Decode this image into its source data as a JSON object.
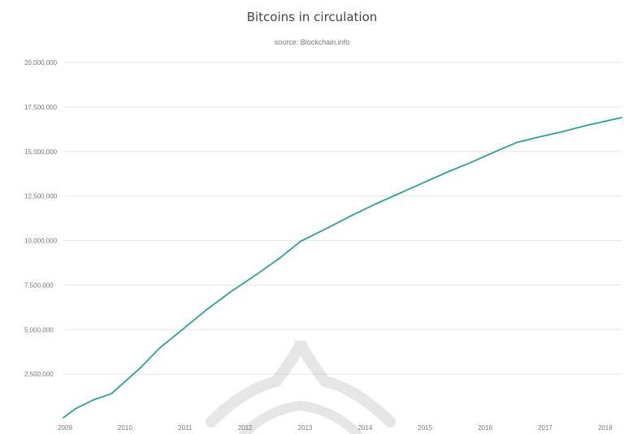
{
  "chart_data": {
    "type": "line",
    "title": "Bitcoins in circulation",
    "subtitle": "source: Blockchain.info",
    "ylabel": "",
    "xlabel": "",
    "ylim": [
      0,
      20000000
    ],
    "yticks": [
      2500000,
      5000000,
      7500000,
      10000000,
      12500000,
      15000000,
      17500000,
      20000000
    ],
    "ytick_labels": [
      "2,500,000",
      "5,000,000",
      "7,500,000",
      "10,000,000",
      "12,500,000",
      "15,000,000",
      "17,500,000",
      "20,000,000"
    ],
    "xticks": [
      2009,
      2010,
      2011,
      2012,
      2013,
      2014,
      2015,
      2016,
      2017,
      2018
    ],
    "xtick_labels": [
      "2009",
      "2010",
      "2011",
      "2012",
      "2013",
      "2014",
      "2015",
      "2016",
      "2017",
      "2018"
    ],
    "xlim": [
      2009,
      2018.3
    ],
    "grid": true,
    "line_color": "#2aa198",
    "series": [
      {
        "x": [
          2009.0,
          2009.2,
          2009.5,
          2009.8,
          2010.0,
          2010.3,
          2010.6,
          2011.0,
          2011.4,
          2011.8,
          2012.2,
          2012.6,
          2012.95,
          2013.4,
          2013.8,
          2014.2,
          2014.6,
          2015.0,
          2015.4,
          2015.8,
          2016.2,
          2016.55,
          2016.9,
          2017.3,
          2017.7,
          2018.1,
          2018.3
        ],
        "y": [
          50000,
          550000,
          1050000,
          1400000,
          2000000,
          2900000,
          3950000,
          5050000,
          6150000,
          7150000,
          8050000,
          9000000,
          9950000,
          10700000,
          11400000,
          12050000,
          12650000,
          13250000,
          13850000,
          14400000,
          15000000,
          15500000,
          15800000,
          16100000,
          16450000,
          16750000,
          16900000
        ]
      }
    ]
  }
}
